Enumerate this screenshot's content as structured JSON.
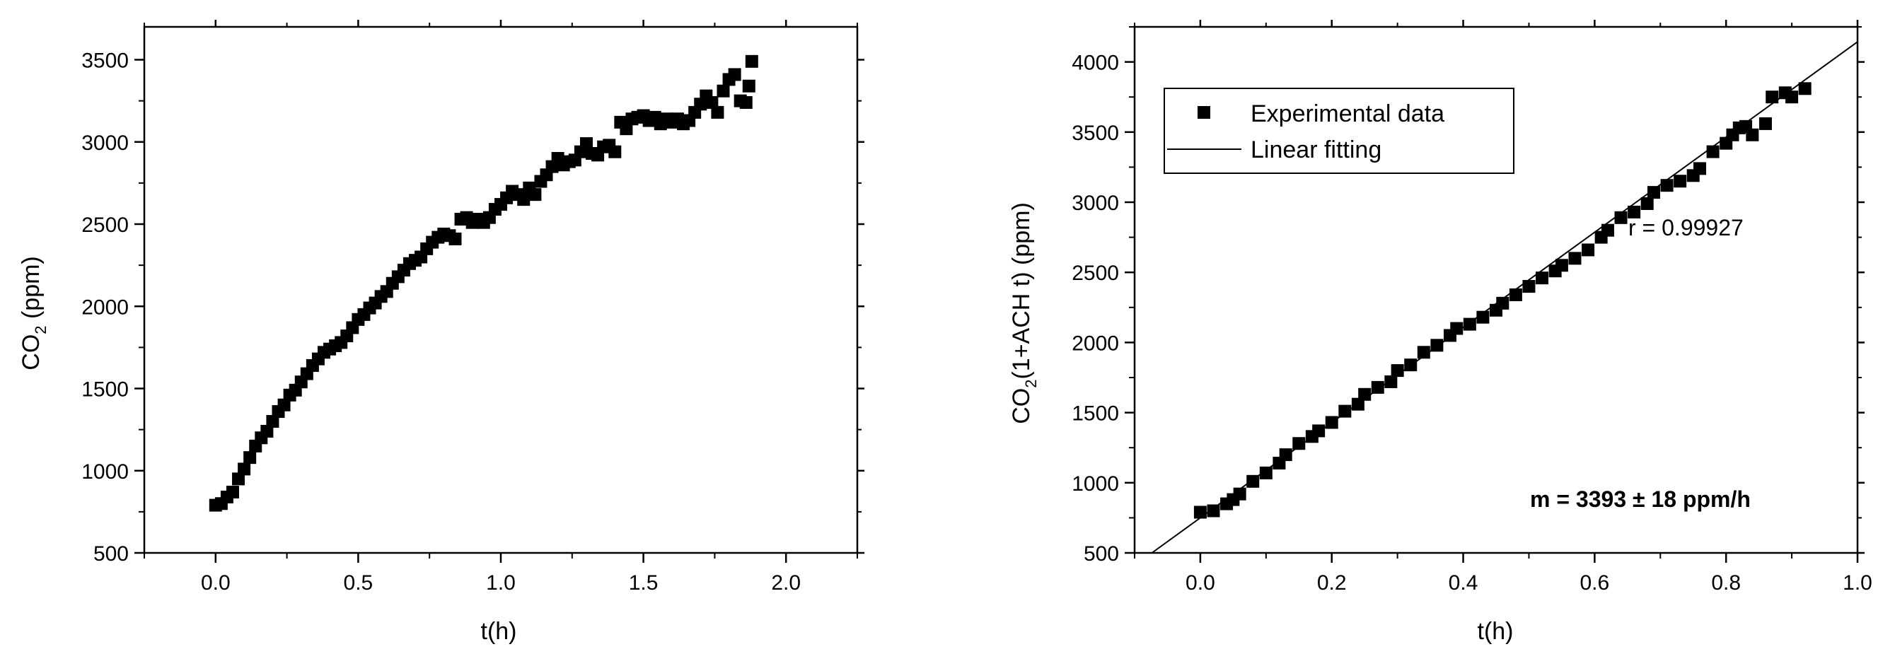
{
  "chart_data": [
    {
      "type": "scatter",
      "xlabel": "t(h)",
      "ylabel_main": "CO",
      "ylabel_sub": "2",
      "ylabel_tail": " (ppm)",
      "xlim": [
        -0.25,
        2.25
      ],
      "ylim": [
        500,
        3700
      ],
      "xticks": [
        0.0,
        0.5,
        1.0,
        1.5,
        2.0
      ],
      "xtick_labels": [
        "0.0",
        "0.5",
        "1.0",
        "1.5",
        "2.0"
      ],
      "yticks": [
        500,
        1000,
        1500,
        2000,
        2500,
        3000,
        3500
      ],
      "ytick_labels": [
        "500",
        "1000",
        "1500",
        "2000",
        "2500",
        "3000",
        "3500"
      ],
      "series": [
        {
          "marker": "square",
          "color": "#000000",
          "points": [
            [
              0.0,
              790
            ],
            [
              0.02,
              800
            ],
            [
              0.04,
              840
            ],
            [
              0.06,
              870
            ],
            [
              0.08,
              950
            ],
            [
              0.1,
              1010
            ],
            [
              0.12,
              1080
            ],
            [
              0.14,
              1150
            ],
            [
              0.16,
              1200
            ],
            [
              0.18,
              1240
            ],
            [
              0.2,
              1300
            ],
            [
              0.22,
              1360
            ],
            [
              0.24,
              1400
            ],
            [
              0.26,
              1460
            ],
            [
              0.28,
              1490
            ],
            [
              0.3,
              1540
            ],
            [
              0.32,
              1590
            ],
            [
              0.34,
              1640
            ],
            [
              0.36,
              1680
            ],
            [
              0.38,
              1720
            ],
            [
              0.4,
              1740
            ],
            [
              0.42,
              1760
            ],
            [
              0.44,
              1780
            ],
            [
              0.46,
              1820
            ],
            [
              0.48,
              1870
            ],
            [
              0.5,
              1920
            ],
            [
              0.52,
              1950
            ],
            [
              0.54,
              1990
            ],
            [
              0.56,
              2020
            ],
            [
              0.58,
              2060
            ],
            [
              0.6,
              2090
            ],
            [
              0.62,
              2140
            ],
            [
              0.64,
              2180
            ],
            [
              0.66,
              2220
            ],
            [
              0.68,
              2260
            ],
            [
              0.7,
              2280
            ],
            [
              0.72,
              2300
            ],
            [
              0.74,
              2350
            ],
            [
              0.76,
              2390
            ],
            [
              0.78,
              2420
            ],
            [
              0.8,
              2440
            ],
            [
              0.82,
              2430
            ],
            [
              0.84,
              2410
            ],
            [
              0.86,
              2530
            ],
            [
              0.88,
              2540
            ],
            [
              0.9,
              2510
            ],
            [
              0.92,
              2530
            ],
            [
              0.94,
              2510
            ],
            [
              0.96,
              2540
            ],
            [
              0.98,
              2590
            ],
            [
              1.0,
              2620
            ],
            [
              1.02,
              2660
            ],
            [
              1.04,
              2700
            ],
            [
              1.06,
              2680
            ],
            [
              1.08,
              2650
            ],
            [
              1.1,
              2720
            ],
            [
              1.12,
              2680
            ],
            [
              1.14,
              2760
            ],
            [
              1.16,
              2800
            ],
            [
              1.18,
              2850
            ],
            [
              1.2,
              2900
            ],
            [
              1.22,
              2860
            ],
            [
              1.24,
              2880
            ],
            [
              1.26,
              2890
            ],
            [
              1.28,
              2940
            ],
            [
              1.3,
              2990
            ],
            [
              1.32,
              2930
            ],
            [
              1.34,
              2920
            ],
            [
              1.36,
              2970
            ],
            [
              1.38,
              2980
            ],
            [
              1.4,
              2940
            ],
            [
              1.42,
              3120
            ],
            [
              1.44,
              3080
            ],
            [
              1.46,
              3140
            ],
            [
              1.48,
              3150
            ],
            [
              1.5,
              3160
            ],
            [
              1.52,
              3130
            ],
            [
              1.54,
              3150
            ],
            [
              1.56,
              3110
            ],
            [
              1.58,
              3140
            ],
            [
              1.6,
              3120
            ],
            [
              1.62,
              3140
            ],
            [
              1.64,
              3110
            ],
            [
              1.66,
              3130
            ],
            [
              1.68,
              3180
            ],
            [
              1.7,
              3230
            ],
            [
              1.72,
              3280
            ],
            [
              1.74,
              3240
            ],
            [
              1.76,
              3180
            ],
            [
              1.78,
              3310
            ],
            [
              1.8,
              3380
            ],
            [
              1.82,
              3410
            ],
            [
              1.84,
              3250
            ],
            [
              1.86,
              3240
            ],
            [
              1.87,
              3340
            ],
            [
              1.88,
              3490
            ]
          ]
        }
      ]
    },
    {
      "type": "scatter",
      "xlabel": "t(h)",
      "ylabel_main": "CO",
      "ylabel_sub": "2",
      "ylabel_tail": "(1+ACH t) (ppm)",
      "xlim": [
        -0.1,
        1.0
      ],
      "ylim": [
        500,
        4250
      ],
      "xticks": [
        0.0,
        0.2,
        0.4,
        0.6,
        0.8,
        1.0
      ],
      "xtick_labels": [
        "0.0",
        "0.2",
        "0.4",
        "0.6",
        "0.8",
        "1.0"
      ],
      "yticks": [
        500,
        1000,
        1500,
        2000,
        2500,
        3000,
        3500,
        4000
      ],
      "ytick_labels": [
        "500",
        "1000",
        "1500",
        "2000",
        "2500",
        "3000",
        "3500",
        "4000"
      ],
      "legend": {
        "placement": "top-left",
        "entries": [
          "Experimental data",
          "Linear fitting"
        ]
      },
      "annotations": {
        "r_text": "r = 0.99927",
        "slope_text": "m = 3393 ± 18 ppm/h"
      },
      "fit": {
        "name": "Linear fitting",
        "slope": 3393,
        "intercept": 750,
        "x_range": [
          -0.1,
          1.0
        ]
      },
      "series": [
        {
          "name": "Experimental data",
          "marker": "square",
          "color": "#000000",
          "points": [
            [
              0.0,
              790
            ],
            [
              0.02,
              800
            ],
            [
              0.04,
              850
            ],
            [
              0.05,
              880
            ],
            [
              0.06,
              920
            ],
            [
              0.08,
              1010
            ],
            [
              0.1,
              1070
            ],
            [
              0.12,
              1140
            ],
            [
              0.13,
              1200
            ],
            [
              0.15,
              1280
            ],
            [
              0.17,
              1330
            ],
            [
              0.18,
              1370
            ],
            [
              0.2,
              1430
            ],
            [
              0.22,
              1510
            ],
            [
              0.24,
              1560
            ],
            [
              0.25,
              1630
            ],
            [
              0.27,
              1680
            ],
            [
              0.29,
              1720
            ],
            [
              0.3,
              1800
            ],
            [
              0.32,
              1840
            ],
            [
              0.34,
              1930
            ],
            [
              0.36,
              1980
            ],
            [
              0.38,
              2050
            ],
            [
              0.39,
              2100
            ],
            [
              0.41,
              2130
            ],
            [
              0.43,
              2180
            ],
            [
              0.45,
              2230
            ],
            [
              0.46,
              2280
            ],
            [
              0.48,
              2340
            ],
            [
              0.5,
              2400
            ],
            [
              0.52,
              2460
            ],
            [
              0.54,
              2510
            ],
            [
              0.55,
              2550
            ],
            [
              0.57,
              2600
            ],
            [
              0.59,
              2660
            ],
            [
              0.61,
              2750
            ],
            [
              0.62,
              2800
            ],
            [
              0.64,
              2890
            ],
            [
              0.66,
              2930
            ],
            [
              0.68,
              2990
            ],
            [
              0.69,
              3070
            ],
            [
              0.71,
              3120
            ],
            [
              0.73,
              3150
            ],
            [
              0.75,
              3190
            ],
            [
              0.76,
              3240
            ],
            [
              0.78,
              3360
            ],
            [
              0.8,
              3420
            ],
            [
              0.81,
              3480
            ],
            [
              0.82,
              3530
            ],
            [
              0.83,
              3540
            ],
            [
              0.84,
              3480
            ],
            [
              0.86,
              3560
            ],
            [
              0.87,
              3750
            ],
            [
              0.89,
              3780
            ],
            [
              0.9,
              3750
            ],
            [
              0.92,
              3810
            ]
          ]
        }
      ]
    }
  ]
}
